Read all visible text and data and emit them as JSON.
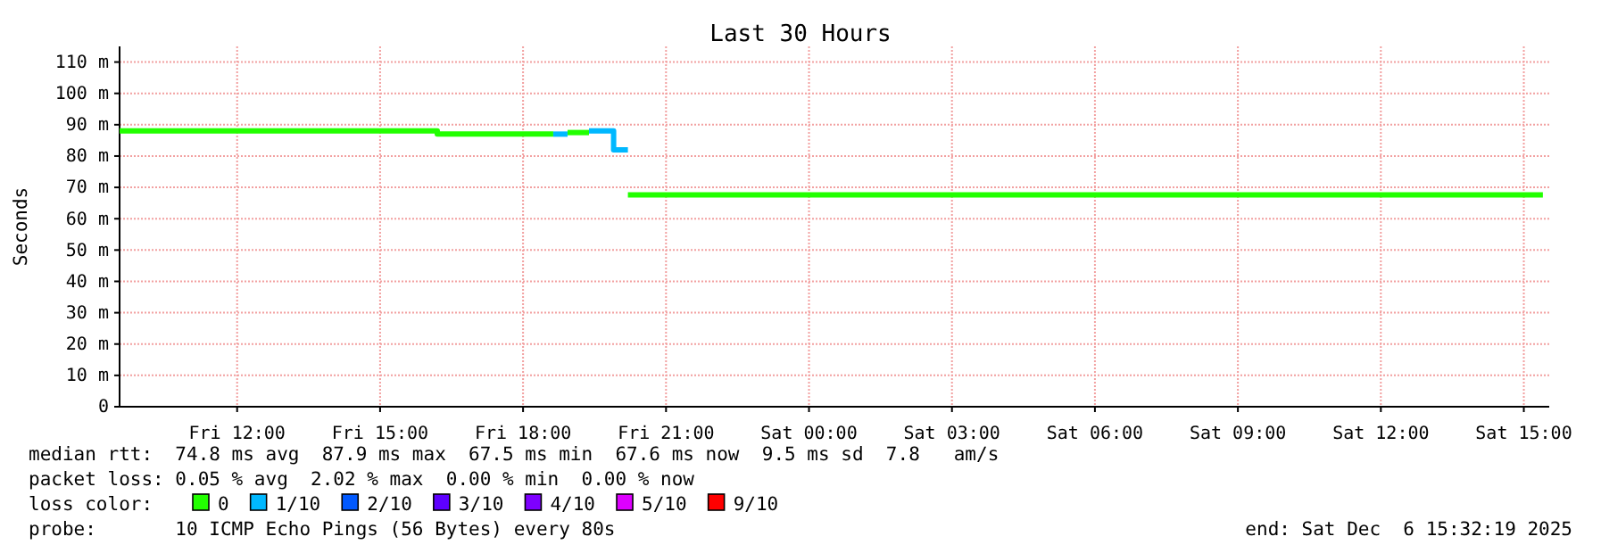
{
  "chart_data": {
    "type": "step",
    "title": "Last 30 Hours",
    "ylabel": "Seconds",
    "xlim": [
      "2025-12-05T09:32",
      "2025-12-06T15:32"
    ],
    "xticks": [
      {
        "value": "2025-12-05T12:00",
        "label": "Fri 12:00"
      },
      {
        "value": "2025-12-05T15:00",
        "label": "Fri 15:00"
      },
      {
        "value": "2025-12-05T18:00",
        "label": "Fri 18:00"
      },
      {
        "value": "2025-12-05T21:00",
        "label": "Fri 21:00"
      },
      {
        "value": "2025-12-06T00:00",
        "label": "Sat 00:00"
      },
      {
        "value": "2025-12-06T03:00",
        "label": "Sat 03:00"
      },
      {
        "value": "2025-12-06T06:00",
        "label": "Sat 06:00"
      },
      {
        "value": "2025-12-06T09:00",
        "label": "Sat 09:00"
      },
      {
        "value": "2025-12-06T12:00",
        "label": "Sat 12:00"
      },
      {
        "value": "2025-12-06T15:00",
        "label": "Sat 15:00"
      }
    ],
    "ylim": [
      0,
      115
    ],
    "yticks": [
      0,
      {
        "value": 10,
        "label": "10 m"
      },
      {
        "value": 20,
        "label": "20 m"
      },
      {
        "value": 30,
        "label": "30 m"
      },
      {
        "value": 40,
        "label": "40 m"
      },
      {
        "value": 50,
        "label": "50 m"
      },
      {
        "value": 60,
        "label": "60 m"
      },
      {
        "value": 70,
        "label": "70 m"
      },
      {
        "value": 80,
        "label": "80 m"
      },
      {
        "value": 90,
        "label": "90 m"
      },
      {
        "value": 100,
        "label": "100 m"
      },
      {
        "value": 110,
        "label": "110 m"
      }
    ],
    "grid": true,
    "legend": "bottom",
    "legend_title": "loss color:",
    "series": [
      {
        "name": "0",
        "color": "#22ff00",
        "x": [
          "2025-12-05T09:32",
          "2025-12-05T16:12",
          "2025-12-05T18:38"
        ],
        "values": [
          88,
          87,
          87
        ]
      },
      {
        "name": "1/10",
        "color": "#00b8ff",
        "x": [
          "2025-12-05T18:38",
          "2025-12-05T18:56"
        ],
        "values": [
          87,
          87
        ]
      },
      {
        "name": "2/10",
        "color": "#0059ff"
      },
      {
        "name": "3/10",
        "color": "#5e00ff"
      },
      {
        "name": "4/10",
        "color": "#7e00ff"
      },
      {
        "name": "5/10",
        "color": "#dd00ff"
      },
      {
        "name": "9/10",
        "color": "#ff0000"
      },
      {
        "color": "#22ff00",
        "x": [
          "2025-12-05T18:56",
          "2025-12-05T19:23"
        ],
        "values": [
          87.5,
          87.5
        ]
      },
      {
        "color": "#00b8ff",
        "x": [
          "2025-12-05T19:23",
          "2025-12-05T19:54",
          "2025-12-05T20:12"
        ],
        "values": [
          88,
          82,
          82
        ]
      },
      {
        "color": "#22ff00",
        "x": [
          "2025-12-05T20:12",
          "2025-12-06T15:24"
        ],
        "values": [
          67.6,
          67.6
        ]
      }
    ],
    "annotations": [
      "median rtt:  74.8 ms avg  87.9 ms max  67.5 ms min  67.6 ms now  9.5 ms sd  7.8   am/s",
      "packet loss: 0.05 % avg  2.02 % max  0.00 % min  0.00 % now",
      "probe:       10 ICMP Echo Pings (56 Bytes) every 80s",
      "end: Sat Dec  6 15:32:19 2025"
    ]
  }
}
